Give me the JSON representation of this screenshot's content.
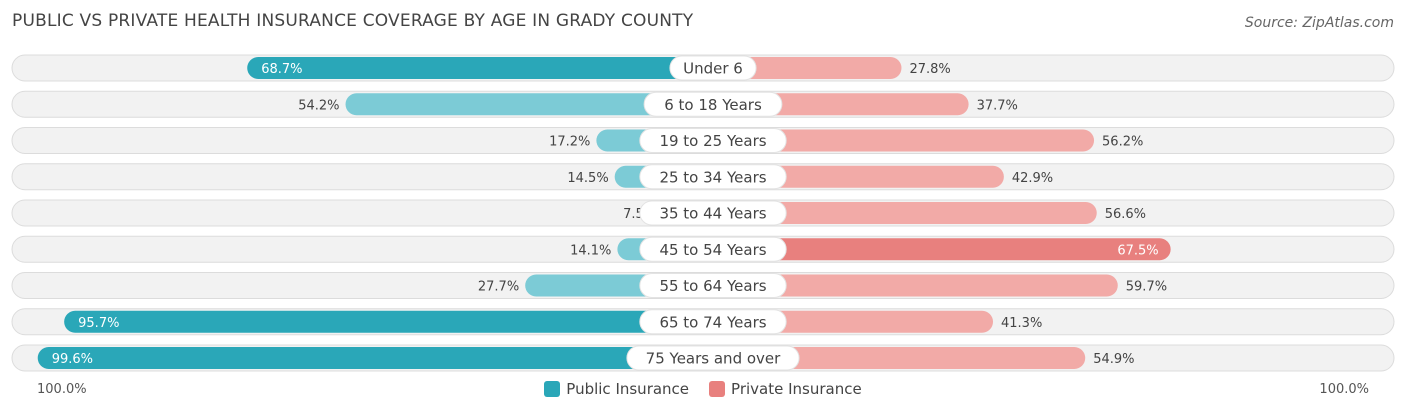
{
  "header": {
    "title": "PUBLIC VS PRIVATE HEALTH INSURANCE COVERAGE BY AGE IN GRADY COUNTY",
    "source": "Source: ZipAtlas.com"
  },
  "axis": {
    "left_label": "100.0%",
    "right_label": "100.0%"
  },
  "legend": {
    "public_label": "Public Insurance",
    "private_label": "Private Insurance"
  },
  "colors": {
    "public_strong": "#2aa7b8",
    "public_light": "#7ccbd6",
    "private_strong": "#e8807e",
    "private_light": "#f2aaa7",
    "track": "#f2f2f2",
    "track_border": "#dcdcdc"
  },
  "chart_data": {
    "type": "bar",
    "orientation": "horizontal-diverging",
    "title": "PUBLIC VS PRIVATE HEALTH INSURANCE COVERAGE BY AGE IN GRADY COUNTY",
    "categories": [
      "Under 6",
      "6 to 18 Years",
      "19 to 25 Years",
      "25 to 34 Years",
      "35 to 44 Years",
      "45 to 54 Years",
      "55 to 64 Years",
      "65 to 74 Years",
      "75 Years and over"
    ],
    "series": [
      {
        "name": "Public Insurance",
        "values": [
          68.7,
          54.2,
          17.2,
          14.5,
          7.5,
          14.1,
          27.7,
          95.7,
          99.6
        ],
        "labels": [
          "68.7%",
          "54.2%",
          "17.2%",
          "14.5%",
          "7.5%",
          "14.1%",
          "27.7%",
          "95.7%",
          "99.6%"
        ]
      },
      {
        "name": "Private Insurance",
        "values": [
          27.8,
          37.7,
          56.2,
          42.9,
          56.6,
          67.5,
          59.7,
          41.3,
          54.9
        ],
        "labels": [
          "27.8%",
          "37.7%",
          "56.2%",
          "42.9%",
          "56.6%",
          "67.5%",
          "59.7%",
          "41.3%",
          "54.9%"
        ]
      }
    ],
    "xlim": [
      -100,
      100
    ],
    "xlabel_left": "100.0%",
    "xlabel_right": "100.0%",
    "legend_position": "bottom-center"
  }
}
